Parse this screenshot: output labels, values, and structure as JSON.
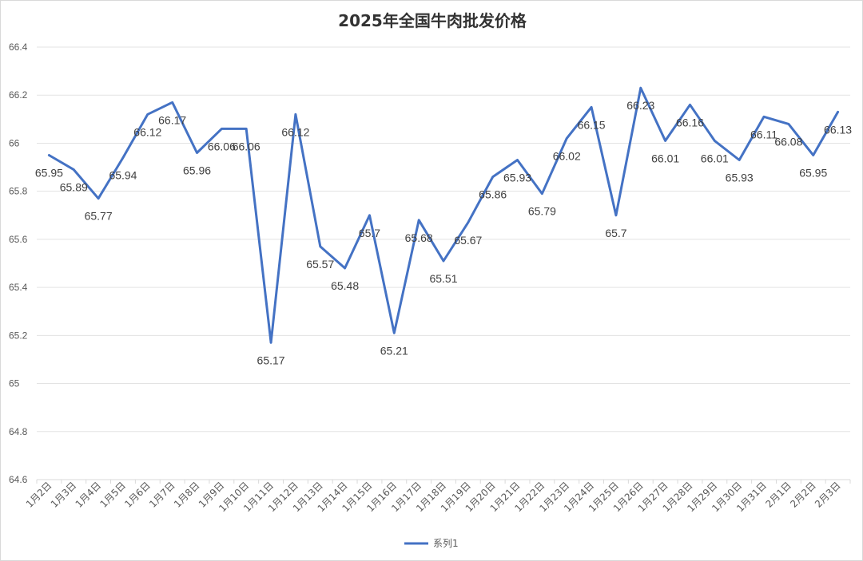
{
  "chart_data": {
    "type": "line",
    "title": "2025年全国牛肉批发价格",
    "xlabel": "",
    "ylabel": "",
    "ylim": [
      64.6,
      66.4
    ],
    "yticks": [
      "64.6",
      "64.8",
      "65",
      "65.2",
      "65.4",
      "65.6",
      "65.8",
      "66",
      "66.2",
      "66.4"
    ],
    "grid": true,
    "legend_position": "bottom",
    "line_color": "#4472C4",
    "categories": [
      "1月2日",
      "1月3日",
      "1月4日",
      "1月5日",
      "1月6日",
      "1月7日",
      "1月8日",
      "1月9日",
      "1月10日",
      "1月11日",
      "1月12日",
      "1月13日",
      "1月14日",
      "1月15日",
      "1月16日",
      "1月17日",
      "1月18日",
      "1月19日",
      "1月20日",
      "1月21日",
      "1月22日",
      "1月23日",
      "1月24日",
      "1月25日",
      "1月26日",
      "1月27日",
      "1月28日",
      "1月29日",
      "1月30日",
      "1月31日",
      "2月1日",
      "2月2日",
      "2月3日"
    ],
    "series": [
      {
        "name": "系列1",
        "values": [
          65.95,
          65.89,
          65.77,
          65.94,
          66.12,
          66.17,
          65.96,
          66.06,
          66.06,
          65.17,
          66.12,
          65.57,
          65.48,
          65.7,
          65.21,
          65.68,
          65.51,
          65.67,
          65.86,
          65.93,
          65.79,
          66.02,
          66.15,
          65.7,
          66.23,
          66.01,
          66.16,
          66.01,
          65.93,
          66.11,
          66.08,
          65.95,
          66.13
        ]
      }
    ]
  }
}
